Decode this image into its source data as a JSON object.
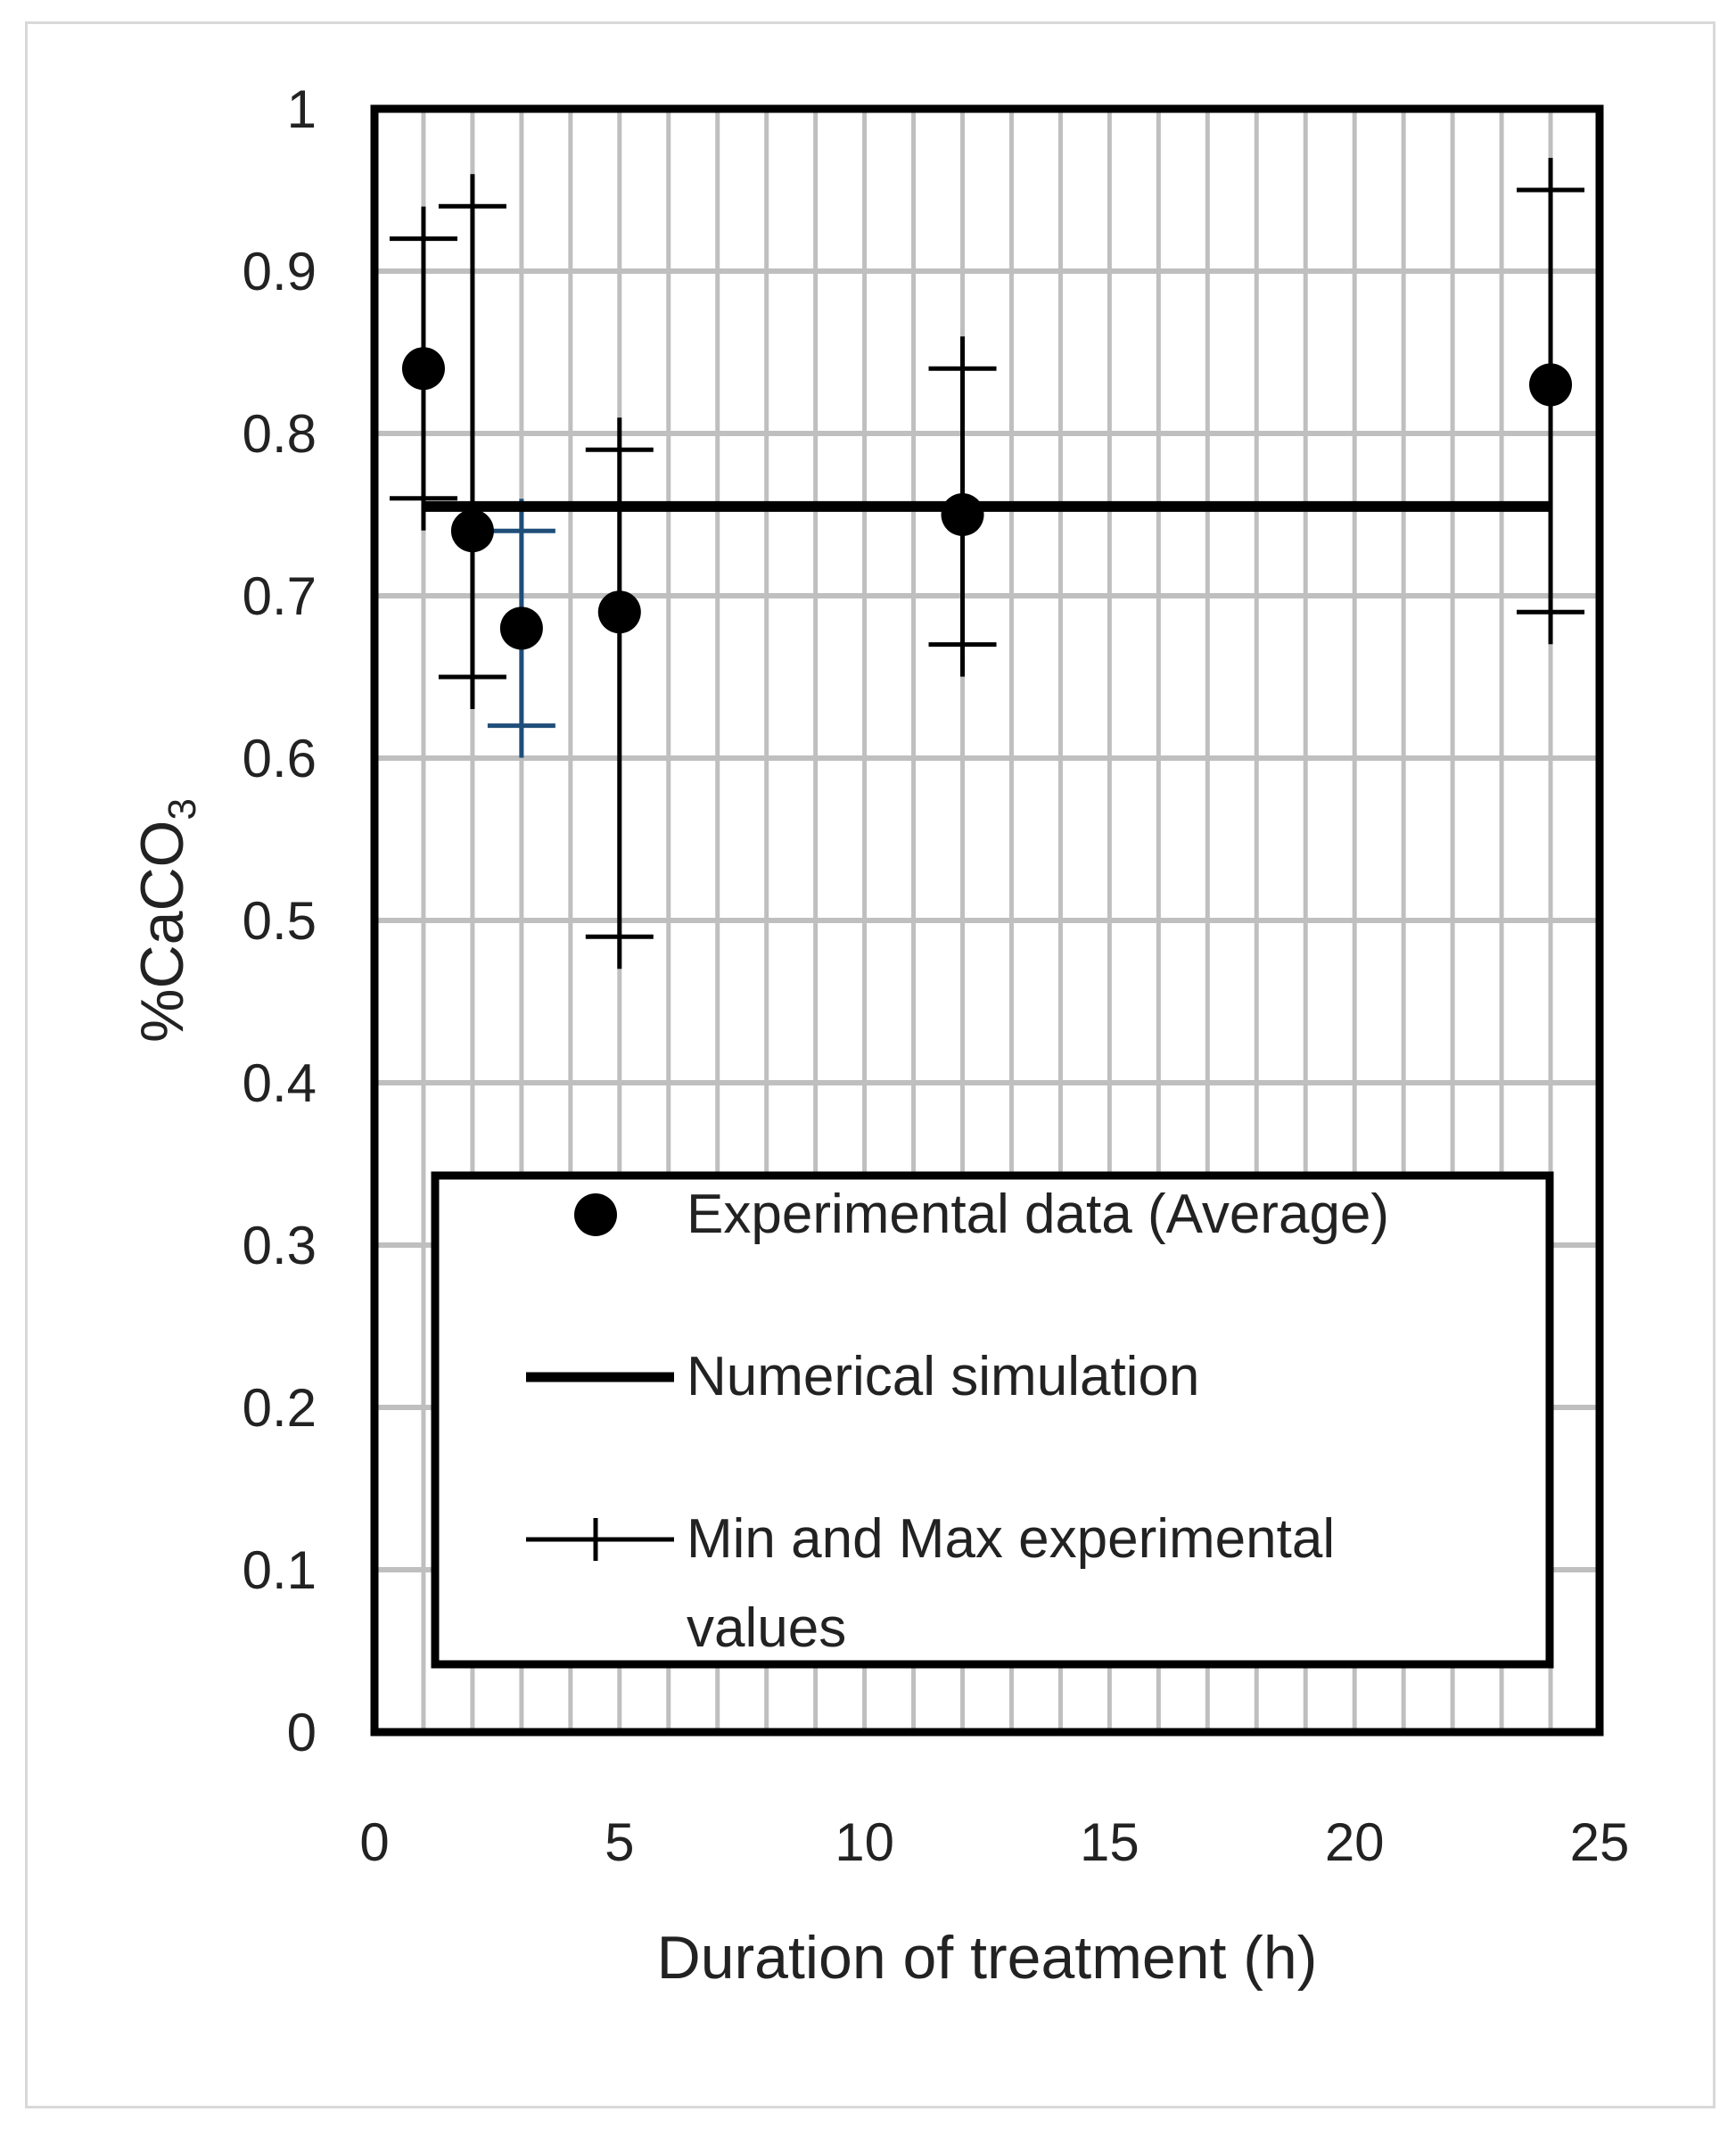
{
  "chart_data": {
    "type": "scatter",
    "title": "",
    "xlabel": "Duration of treatment (h)",
    "ylabel_main": "%CaCO",
    "ylabel_sub": "3",
    "xlim": [
      0,
      25
    ],
    "ylim": [
      0,
      1
    ],
    "xticks": [
      "0",
      "5",
      "10",
      "15",
      "20",
      "25"
    ],
    "yticks": [
      "0",
      "0.1",
      "0.2",
      "0.3",
      "0.4",
      "0.5",
      "0.6",
      "0.7",
      "0.8",
      "0.9",
      "1"
    ],
    "x_minor_step": 1,
    "grid": true,
    "series": [
      {
        "name": "Experimental data (Average)",
        "kind": "markers",
        "x": [
          1,
          2,
          3,
          5,
          12,
          24
        ],
        "y": [
          0.84,
          0.74,
          0.68,
          0.69,
          0.75,
          0.83
        ]
      },
      {
        "name": "Numerical simulation",
        "kind": "line",
        "x": [
          1,
          24
        ],
        "y": [
          0.755,
          0.755
        ]
      },
      {
        "name": "Min and Max experimental values",
        "kind": "range",
        "x": [
          1,
          2,
          3,
          5,
          12,
          24
        ],
        "min": [
          0.76,
          0.65,
          0.62,
          0.49,
          0.67,
          0.69
        ],
        "max": [
          0.92,
          0.94,
          0.74,
          0.79,
          0.84,
          0.95
        ]
      }
    ],
    "legend_position": "lower-center",
    "legend": {
      "line1": "Experimental data (Average)",
      "line2": "Numerical simulation",
      "line3a": "Min and Max experimental",
      "line3b": "values"
    },
    "colors": {
      "marker": "#000000",
      "simulation": "#000000",
      "range": "#000000",
      "range_highlight": "#1f4e79",
      "grid": "#bfbfbf",
      "frame": "#000000"
    }
  }
}
